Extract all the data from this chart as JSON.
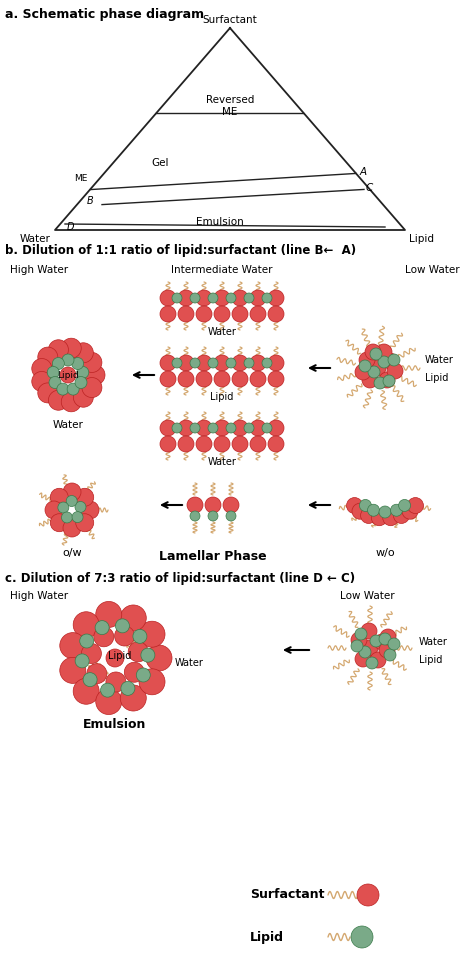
{
  "bg_color": "#ffffff",
  "red_color": "#e05050",
  "red_edge": "#bb2222",
  "green_color": "#7aaa88",
  "green_edge": "#3a7a4a",
  "tail_color": "#d4a870",
  "triangle_color": "#222222",
  "section_a_title": "a. Schematic phase diagram",
  "section_b_title": "b. Dilution of 1:1 ratio of lipid:surfactant (line B←  A)",
  "section_c_title": "c. Dilution of 7:3 ratio of lipid:surfactant (line D ← C)"
}
